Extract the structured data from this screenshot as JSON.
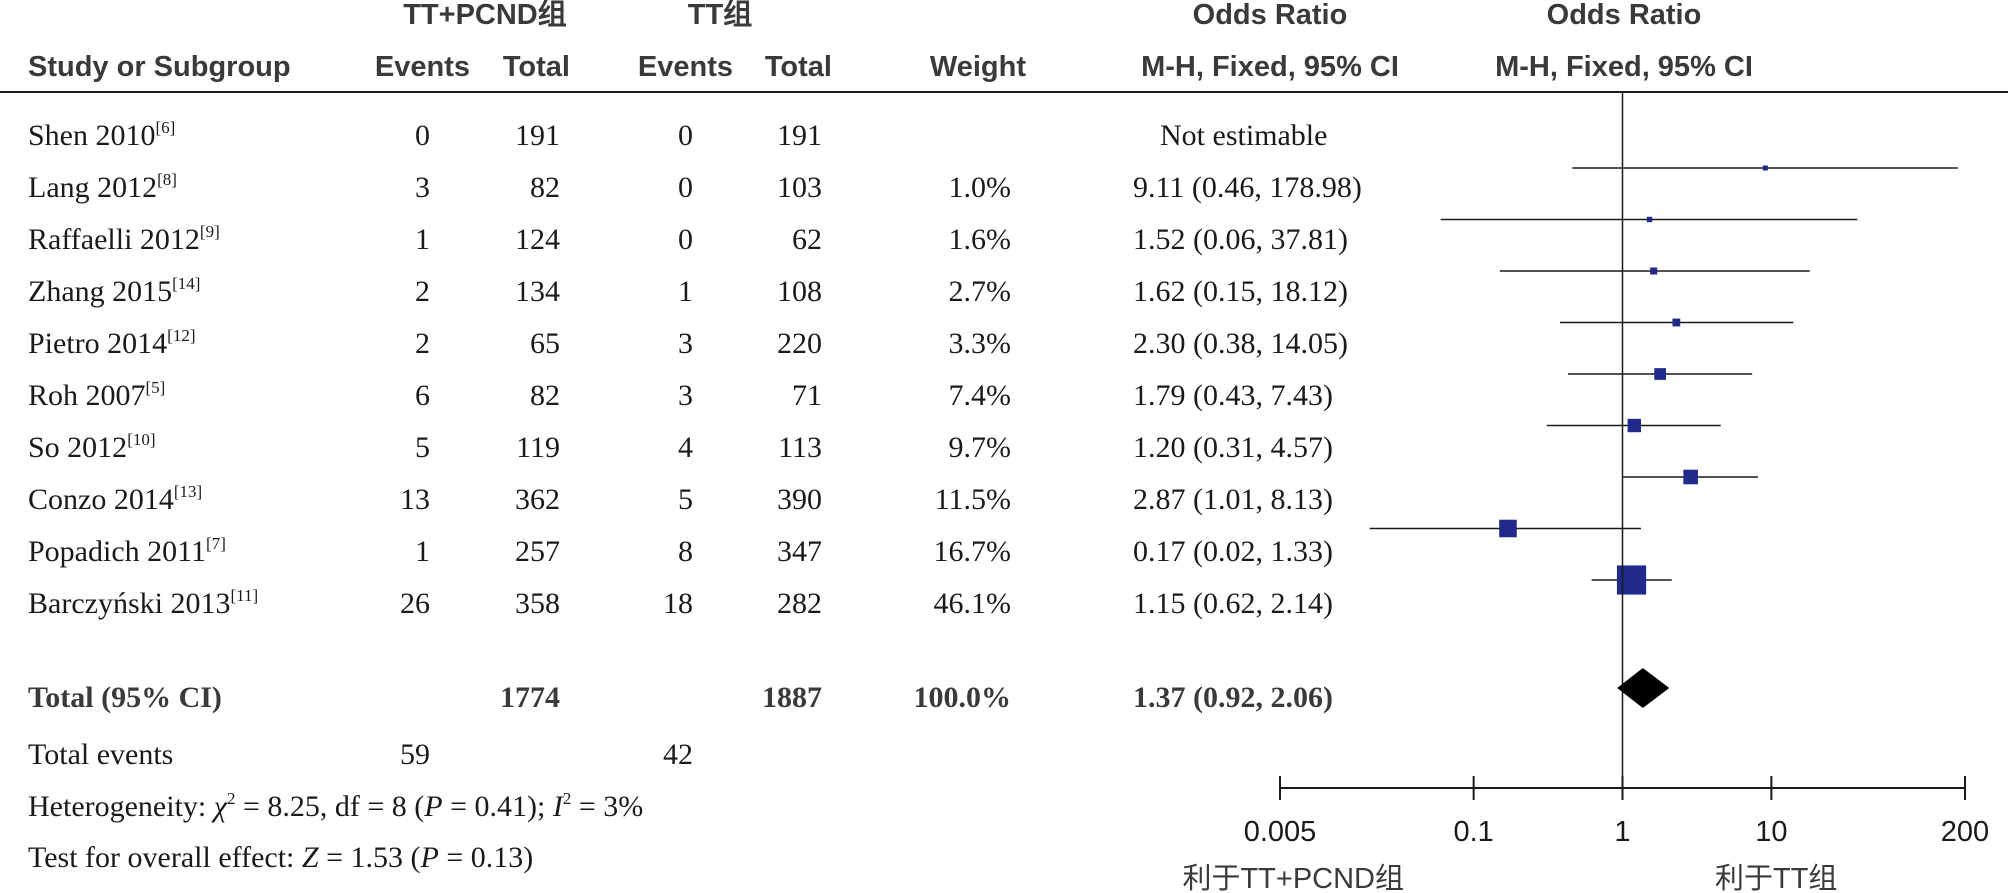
{
  "headers": {
    "group1": "TT+PCND组",
    "group2": "TT组",
    "or_top": "Odds Ratio",
    "or_bottom": "M-H, Fixed, 95% CI",
    "plot_top": "Odds Ratio",
    "plot_bottom": "M-H, Fixed, 95% CI",
    "study": "Study or Subgroup",
    "events": "Events",
    "total": "Total",
    "weight": "Weight"
  },
  "studies": [
    {
      "name": "Shen 2010",
      "ref": "[6]",
      "e1": "0",
      "t1": "191",
      "e2": "0",
      "t2": "191",
      "weight": "",
      "ci_text": "Not estimable"
    },
    {
      "name": "Lang 2012",
      "ref": "[8]",
      "e1": "3",
      "t1": "82",
      "e2": "0",
      "t2": "103",
      "weight": "1.0%",
      "ci_text": "9.11 (0.46, 178.98)"
    },
    {
      "name": "Raffaelli 2012",
      "ref": "[9]",
      "e1": "1",
      "t1": "124",
      "e2": "0",
      "t2": "62",
      "weight": "1.6%",
      "ci_text": "1.52 (0.06, 37.81)"
    },
    {
      "name": "Zhang 2015",
      "ref": "[14]",
      "e1": "2",
      "t1": "134",
      "e2": "1",
      "t2": "108",
      "weight": "2.7%",
      "ci_text": "1.62 (0.15, 18.12)"
    },
    {
      "name": "Pietro 2014",
      "ref": "[12]",
      "e1": "2",
      "t1": "65",
      "e2": "3",
      "t2": "220",
      "weight": "3.3%",
      "ci_text": "2.30 (0.38, 14.05)"
    },
    {
      "name": "Roh 2007",
      "ref": "[5]",
      "e1": "6",
      "t1": "82",
      "e2": "3",
      "t2": "71",
      "weight": "7.4%",
      "ci_text": "1.79 (0.43, 7.43)"
    },
    {
      "name": "So 2012",
      "ref": "[10]",
      "e1": "5",
      "t1": "119",
      "e2": "4",
      "t2": "113",
      "weight": "9.7%",
      "ci_text": "1.20 (0.31, 4.57)"
    },
    {
      "name": "Conzo 2014",
      "ref": "[13]",
      "e1": "13",
      "t1": "362",
      "e2": "5",
      "t2": "390",
      "weight": "11.5%",
      "ci_text": "2.87 (1.01, 8.13)"
    },
    {
      "name": "Popadich 2011",
      "ref": "[7]",
      "e1": "1",
      "t1": "257",
      "e2": "8",
      "t2": "347",
      "weight": "16.7%",
      "ci_text": "0.17 (0.02, 1.33)"
    },
    {
      "name": "Barczyński 2013",
      "ref": "[11]",
      "e1": "26",
      "t1": "358",
      "e2": "18",
      "t2": "282",
      "weight": "46.1%",
      "ci_text": "1.15 (0.62, 2.14)"
    }
  ],
  "total_row": {
    "label": "Total (95% CI)",
    "t1": "1774",
    "t2": "1887",
    "weight": "100.0%",
    "ci_text": "1.37 (0.92, 2.06)"
  },
  "events_row": {
    "label": "Total events",
    "e1": "59",
    "e2": "42"
  },
  "heterogeneity": {
    "prefix": "Heterogeneity: ",
    "chi": "χ",
    "chi_val": " = 8.25, df = 8 (",
    "p": "P",
    "p_val": " = 0.41); ",
    "i": "I",
    "i_val": " = 3%"
  },
  "overall": {
    "prefix": "Test for overall effect: ",
    "z": "Z",
    "z_val": " = 1.53 (",
    "p": "P",
    "p_val": " = 0.13)"
  },
  "axis": {
    "left_label": "利于TT+PCND组",
    "right_label": "利于TT组"
  },
  "colors": {
    "marker": "#1f2a8c",
    "line": "#1a1a1a",
    "diamond": "#000000",
    "header_text": "#3a3a3a"
  },
  "chart_data": {
    "type": "forest",
    "scale": "log",
    "xlim": [
      0.005,
      200
    ],
    "ticks": [
      0.005,
      0.1,
      1,
      10,
      200
    ],
    "tick_labels": [
      "0.005",
      "0.1",
      "1",
      "10",
      "200"
    ],
    "reference_line": 1,
    "series": [
      {
        "name": "Shen 2010",
        "or": null,
        "lower": null,
        "upper": null,
        "weight": null
      },
      {
        "name": "Lang 2012",
        "or": 9.11,
        "lower": 0.46,
        "upper": 178.98,
        "weight": 1.0
      },
      {
        "name": "Raffaelli 2012",
        "or": 1.52,
        "lower": 0.06,
        "upper": 37.81,
        "weight": 1.6
      },
      {
        "name": "Zhang 2015",
        "or": 1.62,
        "lower": 0.15,
        "upper": 18.12,
        "weight": 2.7
      },
      {
        "name": "Pietro 2014",
        "or": 2.3,
        "lower": 0.38,
        "upper": 14.05,
        "weight": 3.3
      },
      {
        "name": "Roh 2007",
        "or": 1.79,
        "lower": 0.43,
        "upper": 7.43,
        "weight": 7.4
      },
      {
        "name": "So 2012",
        "or": 1.2,
        "lower": 0.31,
        "upper": 4.57,
        "weight": 9.7
      },
      {
        "name": "Conzo 2014",
        "or": 2.87,
        "lower": 1.01,
        "upper": 8.13,
        "weight": 11.5
      },
      {
        "name": "Popadich 2011",
        "or": 0.17,
        "lower": 0.02,
        "upper": 1.33,
        "weight": 16.7
      },
      {
        "name": "Barczyński 2013",
        "or": 1.15,
        "lower": 0.62,
        "upper": 2.14,
        "weight": 46.1
      }
    ],
    "pooled": {
      "name": "Total (95% CI)",
      "or": 1.37,
      "lower": 0.92,
      "upper": 2.06,
      "weight": 100.0
    }
  }
}
